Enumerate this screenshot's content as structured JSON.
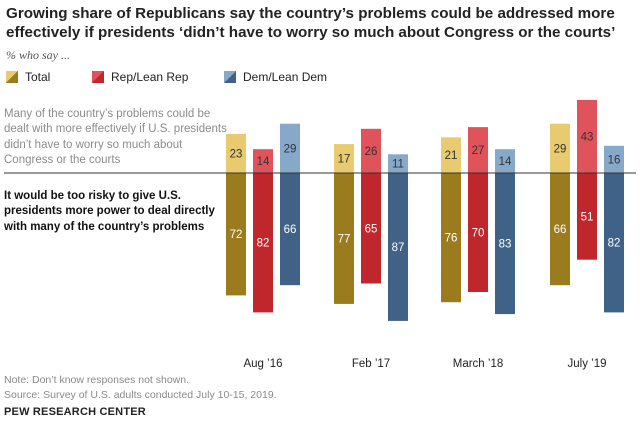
{
  "title": "Growing share of Republicans say the country’s problems could be addressed more effectively if presidents ‘didn’t have to worry so much about Congress or the courts’",
  "subtitle": "% who say ...",
  "legend": [
    {
      "label": "Total",
      "swatch": "total"
    },
    {
      "label": "Rep/Lean Rep",
      "swatch": "rep"
    },
    {
      "label": "Dem/Lean Dem",
      "swatch": "dem"
    }
  ],
  "row_labels": {
    "top": "Many of the country’s problems could be dealt with more effectively if U.S. presidents didn’t have to worry so much about Congress or the courts",
    "bottom": "It would be too risky to give U.S. presidents more power to deal directly with many of the country’s problems"
  },
  "notes": {
    "note": "Note: Don’t know responses not shown.",
    "source": "Source: Survey of U.S. adults conducted July 10-15, 2019.",
    "org": "PEW RESEARCH CENTER"
  },
  "colors": {
    "total_light": "#e8cb6e",
    "total_dark": "#9a7b1e",
    "rep_light": "#e0535a",
    "rep_dark": "#c0272d",
    "dem_light": "#86a9c9",
    "dem_dark": "#3f6286"
  },
  "chart_data": {
    "type": "bar",
    "categories": [
      "Aug ’16",
      "Feb ’17",
      "March ’18",
      "July ’19"
    ],
    "groups": [
      "Total",
      "Rep/Lean Rep",
      "Dem/Lean Dem"
    ],
    "series": [
      {
        "name": "Many of the country’s problems could be dealt with more effectively if U.S. presidents didn’t have to worry so much about Congress or the courts",
        "values": [
          [
            23,
            14,
            29
          ],
          [
            17,
            26,
            11
          ],
          [
            21,
            27,
            14
          ],
          [
            29,
            43,
            16
          ]
        ]
      },
      {
        "name": "It would be too risky to give U.S. presidents more power to deal directly with many of the country’s problems",
        "values": [
          [
            72,
            82,
            66
          ],
          [
            77,
            65,
            87
          ],
          [
            76,
            70,
            83
          ],
          [
            66,
            51,
            82
          ]
        ]
      }
    ]
  }
}
